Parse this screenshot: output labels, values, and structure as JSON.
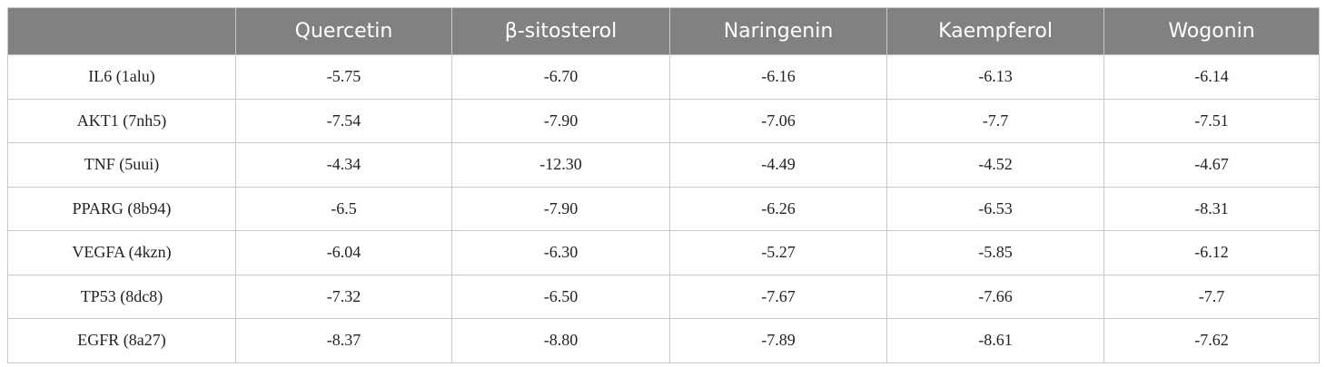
{
  "table": {
    "header": [
      "Quercetin",
      "β-sitosterol",
      "Naringenin",
      "Kaempferol",
      "Wogonin"
    ],
    "rows": [
      [
        "IL6 (1alu)",
        "-5.75",
        "-6.70",
        "-6.16",
        "-6.13",
        "-6.14"
      ],
      [
        "AKT1 (7nh5)",
        "-7.54",
        "-7.90",
        "-7.06",
        "-7.7",
        "-7.51"
      ],
      [
        "TNF (5uui)",
        "-4.34",
        "-12.30",
        "-4.49",
        "-4.52",
        "-4.67"
      ],
      [
        "PPARG (8b94)",
        "-6.5",
        "-7.90",
        "-6.26",
        "-6.53",
        "-8.31"
      ],
      [
        "VEGFA (4kzn)",
        "-6.04",
        "-6.30",
        "-5.27",
        "-5.85",
        "-6.12"
      ],
      [
        "TP53 (8dc8)",
        "-7.32",
        "-6.50",
        "-7.67",
        "-7.66",
        "-7.7"
      ],
      [
        "EGFR (8a27)",
        "-8.37",
        "-8.80",
        "-7.89",
        "-8.61",
        "-7.62"
      ]
    ]
  }
}
